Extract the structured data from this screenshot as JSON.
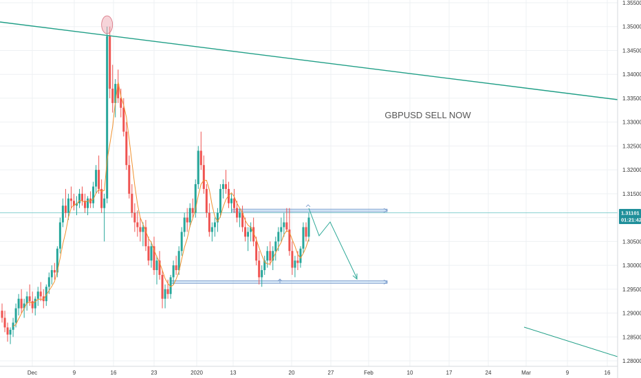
{
  "chart_data": {
    "type": "candlestick",
    "title": "",
    "instrument": "GBPUSD",
    "annotation": "GBPUSD SELL NOW",
    "x_tick_labels": [
      "Dec",
      "9",
      "16",
      "23",
      "2020",
      "13",
      "20",
      "27",
      "Feb",
      "10",
      "17",
      "24",
      "Mar",
      "9",
      "16"
    ],
    "y_tick_labels": [
      "1.35500",
      "1.35000",
      "1.34500",
      "1.34000",
      "1.33500",
      "1.33000",
      "1.32500",
      "1.32000",
      "1.31500",
      "1.31000",
      "1.30500",
      "1.30000",
      "1.29500",
      "1.29000",
      "1.28500",
      "1.28000"
    ],
    "ylim": [
      1.2795,
      1.3555
    ],
    "current_price": "1.31101",
    "countdown": "01:21:42",
    "resistance_level": 1.3115,
    "support_level": 1.2965,
    "candles": [
      [
        1.2905,
        1.292,
        1.288,
        1.289
      ],
      [
        1.289,
        1.2905,
        1.286,
        1.287
      ],
      [
        1.287,
        1.288,
        1.284,
        1.2855
      ],
      [
        1.2855,
        1.287,
        1.2835,
        1.2865
      ],
      [
        1.2865,
        1.289,
        1.285,
        1.288
      ],
      [
        1.288,
        1.292,
        1.287,
        1.291
      ],
      [
        1.291,
        1.294,
        1.2895,
        1.293
      ],
      [
        1.293,
        1.295,
        1.29,
        1.291
      ],
      [
        1.291,
        1.293,
        1.289,
        1.292
      ],
      [
        1.292,
        1.2945,
        1.2905,
        1.2935
      ],
      [
        1.2935,
        1.296,
        1.2915,
        1.2925
      ],
      [
        1.2925,
        1.2945,
        1.29,
        1.291
      ],
      [
        1.291,
        1.2935,
        1.2895,
        1.293
      ],
      [
        1.293,
        1.2955,
        1.2915,
        1.2945
      ],
      [
        1.2945,
        1.2965,
        1.2925,
        1.2935
      ],
      [
        1.2935,
        1.295,
        1.291,
        1.2925
      ],
      [
        1.2925,
        1.296,
        1.2915,
        1.2955
      ],
      [
        1.2955,
        1.2985,
        1.294,
        1.2975
      ],
      [
        1.2975,
        1.3,
        1.296,
        1.299
      ],
      [
        1.299,
        1.3005,
        1.297,
        1.2985
      ],
      [
        1.2985,
        1.304,
        1.2975,
        1.3035
      ],
      [
        1.3035,
        1.31,
        1.3025,
        1.309
      ],
      [
        1.309,
        1.314,
        1.308,
        1.3125
      ],
      [
        1.3125,
        1.316,
        1.31,
        1.311
      ],
      [
        1.311,
        1.315,
        1.3095,
        1.314
      ],
      [
        1.314,
        1.3165,
        1.312,
        1.3135
      ],
      [
        1.3135,
        1.315,
        1.3115,
        1.3125
      ],
      [
        1.3125,
        1.3145,
        1.3105,
        1.313
      ],
      [
        1.313,
        1.316,
        1.312,
        1.315
      ],
      [
        1.315,
        1.3165,
        1.3125,
        1.3135
      ],
      [
        1.3135,
        1.315,
        1.311,
        1.312
      ],
      [
        1.312,
        1.3145,
        1.3105,
        1.314
      ],
      [
        1.314,
        1.3155,
        1.312,
        1.313
      ],
      [
        1.313,
        1.3175,
        1.312,
        1.3165
      ],
      [
        1.3165,
        1.321,
        1.315,
        1.32
      ],
      [
        1.32,
        1.323,
        1.315,
        1.316
      ],
      [
        1.316,
        1.318,
        1.311,
        1.312
      ],
      [
        1.312,
        1.315,
        1.305,
        1.314
      ],
      [
        1.314,
        1.35,
        1.313,
        1.348
      ],
      [
        1.348,
        1.35,
        1.335,
        1.337
      ],
      [
        1.337,
        1.342,
        1.332,
        1.334
      ],
      [
        1.334,
        1.339,
        1.331,
        1.338
      ],
      [
        1.338,
        1.341,
        1.334,
        1.335
      ],
      [
        1.335,
        1.337,
        1.331,
        1.333
      ],
      [
        1.333,
        1.335,
        1.327,
        1.328
      ],
      [
        1.328,
        1.33,
        1.32,
        1.321
      ],
      [
        1.321,
        1.323,
        1.314,
        1.315
      ],
      [
        1.315,
        1.317,
        1.31,
        1.311
      ],
      [
        1.311,
        1.313,
        1.307,
        1.309
      ],
      [
        1.309,
        1.3115,
        1.306,
        1.308
      ],
      [
        1.308,
        1.31,
        1.305,
        1.307
      ],
      [
        1.307,
        1.309,
        1.304,
        1.308
      ],
      [
        1.308,
        1.3095,
        1.303,
        1.304
      ],
      [
        1.304,
        1.306,
        1.3,
        1.301
      ],
      [
        1.301,
        1.305,
        1.2995,
        1.304
      ],
      [
        1.304,
        1.306,
        1.298,
        1.299
      ],
      [
        1.299,
        1.302,
        1.296,
        1.301
      ],
      [
        1.301,
        1.303,
        1.297,
        1.298
      ],
      [
        1.298,
        1.299,
        1.291,
        1.293
      ],
      [
        1.293,
        1.296,
        1.291,
        1.295
      ],
      [
        1.295,
        1.297,
        1.293,
        1.294
      ],
      [
        1.294,
        1.298,
        1.293,
        1.2975
      ],
      [
        1.2975,
        1.301,
        1.296,
        1.3
      ],
      [
        1.3,
        1.302,
        1.298,
        1.299
      ],
      [
        1.299,
        1.304,
        1.298,
        1.303
      ],
      [
        1.303,
        1.308,
        1.302,
        1.307
      ],
      [
        1.307,
        1.311,
        1.306,
        1.31
      ],
      [
        1.31,
        1.312,
        1.307,
        1.309
      ],
      [
        1.309,
        1.313,
        1.308,
        1.312
      ],
      [
        1.312,
        1.314,
        1.31,
        1.311
      ],
      [
        1.311,
        1.318,
        1.31,
        1.317
      ],
      [
        1.317,
        1.325,
        1.316,
        1.324
      ],
      [
        1.324,
        1.328,
        1.32,
        1.321
      ],
      [
        1.321,
        1.323,
        1.315,
        1.316
      ],
      [
        1.316,
        1.317,
        1.31,
        1.311
      ],
      [
        1.311,
        1.313,
        1.306,
        1.307
      ],
      [
        1.307,
        1.309,
        1.305,
        1.308
      ],
      [
        1.308,
        1.31,
        1.306,
        1.309
      ],
      [
        1.309,
        1.312,
        1.307,
        1.311
      ],
      [
        1.311,
        1.317,
        1.31,
        1.316
      ],
      [
        1.316,
        1.318,
        1.314,
        1.317
      ],
      [
        1.317,
        1.32,
        1.315,
        1.316
      ],
      [
        1.316,
        1.3175,
        1.312,
        1.313
      ],
      [
        1.313,
        1.315,
        1.311,
        1.314
      ],
      [
        1.314,
        1.316,
        1.311,
        1.312
      ],
      [
        1.312,
        1.3135,
        1.309,
        1.31
      ],
      [
        1.31,
        1.312,
        1.308,
        1.311
      ],
      [
        1.311,
        1.3125,
        1.307,
        1.308
      ],
      [
        1.308,
        1.31,
        1.305,
        1.306
      ],
      [
        1.306,
        1.308,
        1.303,
        1.307
      ],
      [
        1.307,
        1.309,
        1.305,
        1.308
      ],
      [
        1.308,
        1.31,
        1.304,
        1.305
      ],
      [
        1.305,
        1.306,
        1.3,
        1.301
      ],
      [
        1.301,
        1.303,
        1.296,
        1.2975
      ],
      [
        1.2975,
        1.3,
        1.2955,
        1.299
      ],
      [
        1.299,
        1.302,
        1.298,
        1.301
      ],
      [
        1.301,
        1.304,
        1.2995,
        1.303
      ],
      [
        1.303,
        1.305,
        1.3,
        1.301
      ],
      [
        1.301,
        1.304,
        1.299,
        1.303
      ],
      [
        1.303,
        1.306,
        1.301,
        1.305
      ],
      [
        1.305,
        1.308,
        1.303,
        1.307
      ],
      [
        1.307,
        1.31,
        1.305,
        1.308
      ],
      [
        1.308,
        1.311,
        1.306,
        1.309
      ],
      [
        1.309,
        1.312,
        1.307,
        1.3075
      ],
      [
        1.3075,
        1.312,
        1.302,
        1.303
      ],
      [
        1.303,
        1.305,
        1.298,
        1.2995
      ],
      [
        1.2995,
        1.302,
        1.2975,
        1.301
      ],
      [
        1.301,
        1.303,
        1.299,
        1.3005
      ],
      [
        1.3005,
        1.304,
        1.2995,
        1.3035
      ],
      [
        1.3035,
        1.309,
        1.3025,
        1.308
      ],
      [
        1.308,
        1.309,
        1.305,
        1.306
      ],
      [
        1.306,
        1.311,
        1.305,
        1.31
      ]
    ]
  },
  "colors": {
    "up": "#26a69a",
    "down": "#ef5350",
    "ma": "#f0902c",
    "trendline": "#1f9e86",
    "hline": "#86cfd0",
    "arrow": "#2aa796",
    "grid": "#eef0f3",
    "price_tag": "#1f8f9a"
  }
}
